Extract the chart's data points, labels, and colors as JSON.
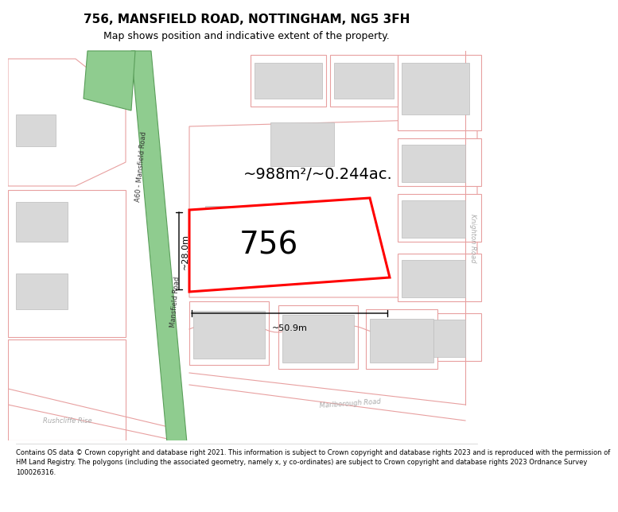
{
  "title": "756, MANSFIELD ROAD, NOTTINGHAM, NG5 3FH",
  "subtitle": "Map shows position and indicative extent of the property.",
  "footer_lines": [
    "Contains OS data © Crown copyright and database right 2021. This information is subject to Crown copyright and database rights 2023 and is reproduced with the permission of",
    "HM Land Registry. The polygons (including the associated geometry, namely x, y co-ordinates) are subject to Crown copyright and database rights 2023 Ordnance Survey",
    "100026316."
  ],
  "map_bg": "#ffffff",
  "road_green_fill": "#8fcc8f",
  "road_green_edge": "#5a9e5a",
  "highlight_red": "#ff0000",
  "building_fill": "#d8d8d8",
  "building_edge": "#bbbbbb",
  "pink": "#e8a0a0",
  "area_text": "~988m²/~0.244ac.",
  "number_text": "756",
  "width_text": "~50.9m",
  "height_text": "~28.0m",
  "label_a60": "A60 - Mansfield Road",
  "label_mansfield": "Mansfield Road",
  "label_knighton": "Knighton Road",
  "label_marlborough": "Marlborough Road",
  "label_rushcliffe": "Rushcliffe Rise",
  "title_fontsize": 11,
  "subtitle_fontsize": 9,
  "area_fontsize": 14,
  "number_fontsize": 28,
  "dim_fontsize": 8,
  "road_label_fontsize": 6,
  "map_label_fontsize": 6
}
